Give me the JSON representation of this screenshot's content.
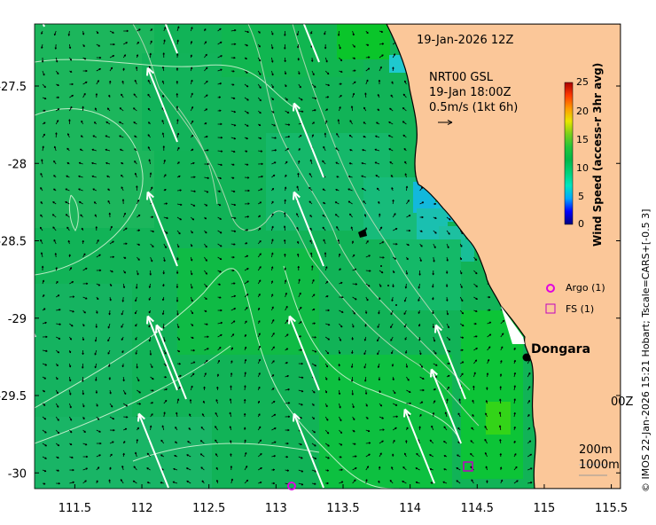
{
  "title": "19-Jan-2026 12Z",
  "vector_legend": {
    "label_lines": [
      "NRT00 GSL",
      "19-Jan 18:00Z",
      "0.5m/s (1kt 6h)"
    ]
  },
  "colorbar": {
    "label": "Wind Speed (access-r 3hr avg)",
    "ticks": [
      "25",
      "20",
      "15",
      "10",
      "5",
      "0"
    ],
    "range": [
      0,
      25
    ],
    "colors": [
      "#00007f",
      "#0000ff",
      "#00a7ff",
      "#00e6c0",
      "#00d27a",
      "#00b84a",
      "#22c53a",
      "#7ad01b",
      "#e8e600",
      "#ff9a00",
      "#ff3a00",
      "#a90000"
    ]
  },
  "x_axis": {
    "ticks": [
      "111.5",
      "112",
      "112.5",
      "113",
      "113.5",
      "114",
      "114.5",
      "115",
      "115.5"
    ]
  },
  "y_axis": {
    "ticks": [
      "-27.5",
      "-28",
      "-28.5",
      "-29",
      "-29.5",
      "-30"
    ]
  },
  "places": [
    {
      "name": "Dongara",
      "lon": 114.92,
      "lat": -29.25
    }
  ],
  "platform_legend": [
    {
      "label": "Argo (1)",
      "symbol": "circle",
      "color": "#e000e0"
    },
    {
      "label": "FS (1)",
      "symbol": "square",
      "color": "#c000c0"
    }
  ],
  "depth_legend": [
    "200m",
    "1000m"
  ],
  "clipped_label": "00Z",
  "credit": "© IMOS 22-Jan-2026 15:21 Hobart; Tscale=CARS+[-0.5 3]",
  "colors": {
    "land": "#fbc799",
    "ocean_base": "#11b357",
    "arrow": "#ffffff",
    "coast": "#000000"
  }
}
